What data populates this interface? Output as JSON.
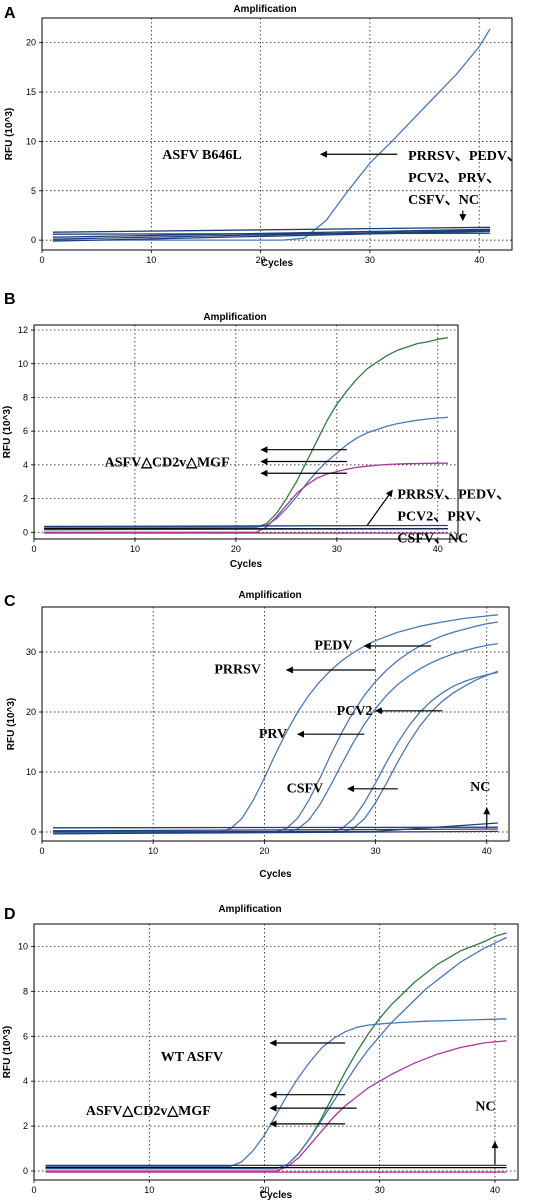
{
  "chart_data": [
    {
      "panel": "A",
      "type": "line",
      "title": "Amplification",
      "xlabel": "Cycles",
      "ylabel": "RFU (10^3)",
      "xlim": [
        0,
        43
      ],
      "ylim": [
        -1,
        22.5
      ],
      "xticks": [
        0,
        10,
        20,
        30,
        40
      ],
      "yticks": [
        0,
        5,
        10,
        15,
        20
      ],
      "grid": true,
      "series": [
        {
          "color": "#4a79b6",
          "x": [
            1,
            22,
            24,
            26,
            28,
            30,
            32,
            34,
            36,
            38,
            40,
            41
          ],
          "y": [
            0,
            0,
            0.2,
            2,
            5,
            7.8,
            10,
            12.3,
            14.6,
            16.9,
            19.6,
            21.4
          ]
        },
        {
          "color": "#1f3f7a",
          "x": [
            1,
            41
          ],
          "y": [
            0.8,
            1.3
          ]
        },
        {
          "color": "#1f3f7a",
          "x": [
            1,
            41
          ],
          "y": [
            0.3,
            1.1
          ]
        },
        {
          "color": "#1f3f7a",
          "x": [
            1,
            41
          ],
          "y": [
            -0.1,
            0.9
          ]
        },
        {
          "color": "#1f3f7a",
          "x": [
            1,
            41
          ],
          "y": [
            0.6,
            0.7
          ]
        },
        {
          "color": "#1f3f7a",
          "x": [
            1,
            41
          ],
          "y": [
            0.1,
            1.0
          ]
        }
      ],
      "annotations": [
        {
          "lines": [
            "ASFV B646L"
          ],
          "at": [
            11,
            8.2
          ]
        },
        {
          "lines": [
            "PRRSV、PEDV、",
            "PCV2、PRV、",
            "CSFV、NC"
          ],
          "at": [
            33.5,
            8.1
          ]
        }
      ],
      "arrows": [
        {
          "from": [
            32.5,
            8.7
          ],
          "to": [
            25.5,
            8.7
          ]
        },
        {
          "from": [
            38.5,
            3.0
          ],
          "to": [
            38.5,
            2.0
          ]
        }
      ]
    },
    {
      "panel": "B",
      "type": "line",
      "title": "Amplification",
      "xlabel": "Cycles",
      "ylabel": "RFU (10^3)",
      "xlim": [
        0,
        42
      ],
      "ylim": [
        -0.4,
        12.3
      ],
      "xticks": [
        0,
        10,
        20,
        30,
        40
      ],
      "yticks": [
        0,
        2,
        4,
        6,
        8,
        10,
        12
      ],
      "grid": true,
      "series": [
        {
          "color": "#2e7d3e",
          "x": [
            1,
            22,
            23,
            24,
            25,
            26,
            27,
            28,
            29,
            30,
            31,
            32,
            33,
            34,
            35,
            36,
            37,
            38,
            39,
            40,
            41
          ],
          "y": [
            0.3,
            0.3,
            0.5,
            1.1,
            2.0,
            3.0,
            4.2,
            5.4,
            6.6,
            7.6,
            8.4,
            9.1,
            9.7,
            10.1,
            10.5,
            10.8,
            11.0,
            11.2,
            11.3,
            11.45,
            11.55
          ]
        },
        {
          "color": "#4a79b6",
          "x": [
            1,
            22,
            23,
            24,
            25,
            26,
            27,
            28,
            29,
            30,
            31,
            32,
            33,
            34,
            35,
            36,
            37,
            38,
            39,
            40,
            41
          ],
          "y": [
            0.3,
            0.3,
            0.4,
            0.8,
            1.4,
            2.1,
            2.9,
            3.6,
            4.2,
            4.7,
            5.2,
            5.6,
            5.9,
            6.1,
            6.3,
            6.45,
            6.55,
            6.65,
            6.72,
            6.78,
            6.82
          ]
        },
        {
          "color": "#b0359a",
          "x": [
            1,
            22,
            23,
            24,
            25,
            26,
            27,
            28,
            29,
            30,
            31,
            32,
            33,
            34,
            35,
            36,
            37,
            38,
            39,
            40,
            41
          ],
          "y": [
            0.0,
            0.0,
            0.3,
            0.9,
            1.6,
            2.3,
            2.8,
            3.2,
            3.45,
            3.6,
            3.75,
            3.85,
            3.92,
            3.98,
            4.02,
            4.05,
            4.07,
            4.08,
            4.09,
            4.1,
            4.1
          ]
        },
        {
          "color": "#1f3f7a",
          "x": [
            1,
            41
          ],
          "y": [
            0.35,
            0.4
          ]
        },
        {
          "color": "#000000",
          "x": [
            1,
            41
          ],
          "y": [
            0.22,
            0.22
          ]
        },
        {
          "color": "#1f3f7a",
          "x": [
            1,
            41
          ],
          "y": [
            0.15,
            0.2
          ]
        },
        {
          "color": "#b0359a",
          "x": [
            1,
            41
          ],
          "y": [
            -0.05,
            -0.05
          ]
        }
      ],
      "annotations": [
        {
          "lines": [
            "ASFV△CD2v△MGF"
          ],
          "at": [
            7,
            3.9
          ]
        },
        {
          "lines": [
            "PRRSV、PEDV、",
            "PCV2、PRV、",
            "CSFV、NC"
          ],
          "at": [
            36,
            2.0
          ]
        }
      ],
      "arrows": [
        {
          "from": [
            31,
            4.9
          ],
          "to": [
            22.5,
            4.9
          ]
        },
        {
          "from": [
            31,
            4.2
          ],
          "to": [
            22.5,
            4.2
          ]
        },
        {
          "from": [
            31,
            3.5
          ],
          "to": [
            22.5,
            3.5
          ]
        },
        {
          "from": [
            33,
            0.4
          ],
          "to": [
            35.5,
            2.5
          ]
        }
      ]
    },
    {
      "panel": "C",
      "type": "line",
      "title": "Amplification",
      "xlabel": "Cycles",
      "ylabel": "RFU (10^3)",
      "xlim": [
        0,
        42
      ],
      "ylim": [
        -1.5,
        37.5
      ],
      "xticks": [
        0,
        10,
        20,
        30,
        40
      ],
      "yticks": [
        0,
        10,
        20,
        30
      ],
      "grid": true,
      "series": [
        {
          "color": "#4a79b6",
          "x": [
            1,
            16,
            17,
            18,
            19,
            20,
            21,
            22,
            23,
            24,
            25,
            26,
            27,
            28,
            29,
            30,
            32,
            34,
            36,
            38,
            40,
            41
          ],
          "y": [
            0,
            0,
            0.6,
            2.3,
            5.3,
            9.0,
            13.0,
            16.7,
            20.0,
            22.8,
            25.1,
            27.0,
            28.6,
            29.9,
            31.0,
            31.9,
            33.3,
            34.3,
            35.0,
            35.6,
            36.0,
            36.2
          ]
        },
        {
          "color": "#4a79b6",
          "x": [
            1,
            21,
            22,
            23,
            24,
            25,
            26,
            27,
            28,
            29,
            30,
            31,
            32,
            33,
            34,
            35,
            36,
            37,
            38,
            39,
            40,
            41
          ],
          "y": [
            0,
            0,
            0.6,
            2.3,
            5.3,
            9.0,
            13.0,
            16.7,
            20.0,
            22.8,
            25.1,
            27.0,
            28.6,
            29.9,
            31.0,
            31.9,
            32.7,
            33.3,
            33.8,
            34.3,
            34.7,
            35.0
          ]
        },
        {
          "color": "#4a79b6",
          "x": [
            1,
            22,
            23,
            24,
            25,
            26,
            27,
            28,
            29,
            30,
            31,
            32,
            33,
            34,
            35,
            36,
            37,
            38,
            39,
            40,
            41
          ],
          "y": [
            0,
            0,
            0.5,
            2.0,
            4.6,
            7.9,
            11.5,
            14.9,
            18.0,
            20.6,
            22.8,
            24.6,
            26.0,
            27.2,
            28.2,
            29.0,
            29.7,
            30.2,
            30.7,
            31.1,
            31.4
          ]
        },
        {
          "color": "#4a79b6",
          "x": [
            1,
            26,
            27,
            28,
            29,
            30,
            31,
            32,
            33,
            34,
            35,
            36,
            37,
            38,
            39,
            40,
            41
          ],
          "y": [
            0,
            0,
            0.6,
            2.2,
            4.9,
            8.2,
            11.7,
            14.9,
            17.7,
            20.0,
            21.8,
            23.2,
            24.3,
            25.1,
            25.7,
            26.2,
            26.6
          ]
        },
        {
          "color": "#4a79b6",
          "x": [
            1,
            27,
            28,
            29,
            30,
            31,
            32,
            33,
            34,
            35,
            36,
            37,
            38,
            39,
            40,
            41
          ],
          "y": [
            0,
            0,
            0.6,
            2.2,
            4.9,
            8.2,
            11.7,
            14.9,
            17.7,
            20.0,
            21.8,
            23.2,
            24.3,
            25.3,
            26.1,
            26.8
          ]
        },
        {
          "color": "#1f3f7a",
          "x": [
            1,
            41
          ],
          "y": [
            0.7,
            0.8
          ]
        },
        {
          "color": "#1f3f7a",
          "x": [
            1,
            41
          ],
          "y": [
            0.2,
            0.5
          ]
        },
        {
          "color": "#1f3f7a",
          "x": [
            1,
            41
          ],
          "y": [
            -0.3,
            0.1
          ]
        },
        {
          "color": "#1f3f7a",
          "x": [
            1,
            30,
            41
          ],
          "y": [
            0.0,
            0.1,
            1.5
          ]
        }
      ],
      "annotations": [
        {
          "lines": [
            "PEDV"
          ],
          "at": [
            24.5,
            30.4
          ]
        },
        {
          "lines": [
            "PRRSV"
          ],
          "at": [
            15.5,
            26.4
          ]
        },
        {
          "lines": [
            "PCV2"
          ],
          "at": [
            26.5,
            19.5
          ]
        },
        {
          "lines": [
            "PRV"
          ],
          "at": [
            19.5,
            15.7
          ]
        },
        {
          "lines": [
            "CSFV"
          ],
          "at": [
            22,
            6.6
          ]
        },
        {
          "lines": [
            "NC"
          ],
          "at": [
            38.5,
            6.8
          ]
        }
      ],
      "arrows": [
        {
          "from": [
            35,
            31
          ],
          "to": [
            29,
            31
          ]
        },
        {
          "from": [
            30,
            27
          ],
          "to": [
            22,
            27
          ]
        },
        {
          "from": [
            36,
            20.2
          ],
          "to": [
            30,
            20.2
          ]
        },
        {
          "from": [
            29,
            16.3
          ],
          "to": [
            23,
            16.3
          ]
        },
        {
          "from": [
            32,
            7.2
          ],
          "to": [
            27.5,
            7.2
          ]
        },
        {
          "from": [
            40,
            0.8
          ],
          "to": [
            40,
            4.0
          ]
        }
      ]
    },
    {
      "panel": "D",
      "type": "line",
      "title": "Amplification",
      "xlabel": "Cycles",
      "ylabel": "RFU (10^3)",
      "xlim": [
        0,
        42
      ],
      "ylim": [
        -0.4,
        11.0
      ],
      "xticks": [
        0,
        10,
        20,
        30,
        40
      ],
      "yticks": [
        0,
        2,
        4,
        6,
        8,
        10
      ],
      "grid": true,
      "series": [
        {
          "color": "#4a79b6",
          "x": [
            1,
            17,
            18,
            19,
            20,
            21,
            22,
            23,
            24,
            25,
            26,
            27,
            28,
            29,
            30,
            32,
            34,
            36,
            38,
            40,
            41
          ],
          "y": [
            0.2,
            0.2,
            0.4,
            0.9,
            1.6,
            2.5,
            3.4,
            4.2,
            4.9,
            5.5,
            5.9,
            6.2,
            6.4,
            6.5,
            6.55,
            6.62,
            6.67,
            6.7,
            6.73,
            6.76,
            6.78
          ]
        },
        {
          "color": "#2e7d3e",
          "x": [
            1,
            21,
            22,
            23,
            24,
            25,
            26,
            27,
            28,
            29,
            30,
            31,
            32,
            33,
            34,
            35,
            36,
            37,
            38,
            39,
            40,
            41
          ],
          "y": [
            0.1,
            0.1,
            0.3,
            0.8,
            1.5,
            2.4,
            3.4,
            4.4,
            5.3,
            6.1,
            6.8,
            7.4,
            7.9,
            8.4,
            8.8,
            9.2,
            9.5,
            9.8,
            10.0,
            10.2,
            10.45,
            10.6
          ]
        },
        {
          "color": "#4a79b6",
          "x": [
            1,
            21,
            22,
            23,
            24,
            25,
            26,
            27,
            28,
            29,
            30,
            31,
            32,
            33,
            34,
            35,
            36,
            37,
            38,
            39,
            40,
            41
          ],
          "y": [
            0.1,
            0.1,
            0.3,
            0.8,
            1.5,
            2.3,
            3.1,
            3.9,
            4.7,
            5.4,
            6.0,
            6.6,
            7.1,
            7.6,
            8.1,
            8.5,
            8.9,
            9.3,
            9.6,
            9.9,
            10.15,
            10.4
          ]
        },
        {
          "color": "#b0359a",
          "x": [
            1,
            21,
            22,
            23,
            24,
            25,
            26,
            27,
            28,
            29,
            30,
            31,
            32,
            33,
            34,
            35,
            36,
            37,
            38,
            39,
            40,
            41
          ],
          "y": [
            0.0,
            0.0,
            0.2,
            0.6,
            1.2,
            1.8,
            2.4,
            2.9,
            3.3,
            3.7,
            4.0,
            4.3,
            4.55,
            4.8,
            5.0,
            5.2,
            5.35,
            5.5,
            5.6,
            5.7,
            5.75,
            5.8
          ]
        },
        {
          "color": "#1f3f7a",
          "x": [
            1,
            41
          ],
          "y": [
            0.25,
            0.25
          ]
        },
        {
          "color": "#000000",
          "x": [
            1,
            41
          ],
          "y": [
            0.15,
            0.15
          ]
        },
        {
          "color": "#b0359a",
          "x": [
            1,
            41
          ],
          "y": [
            -0.05,
            -0.05
          ]
        }
      ],
      "annotations": [
        {
          "lines": [
            "WT ASFV"
          ],
          "at": [
            11,
            4.9
          ]
        },
        {
          "lines": [
            "ASFV△CD2v△MGF"
          ],
          "at": [
            4.5,
            2.5
          ]
        },
        {
          "lines": [
            "NC"
          ],
          "at": [
            38.3,
            2.7
          ]
        }
      ],
      "arrows": [
        {
          "from": [
            27,
            5.7
          ],
          "to": [
            20.5,
            5.7
          ]
        },
        {
          "from": [
            27,
            3.4
          ],
          "to": [
            20.5,
            3.4
          ]
        },
        {
          "from": [
            28,
            2.8
          ],
          "to": [
            20.5,
            2.8
          ]
        },
        {
          "from": [
            27,
            2.1
          ],
          "to": [
            20.5,
            2.1
          ]
        },
        {
          "from": [
            40,
            0.3
          ],
          "to": [
            40,
            1.3
          ]
        }
      ]
    }
  ]
}
